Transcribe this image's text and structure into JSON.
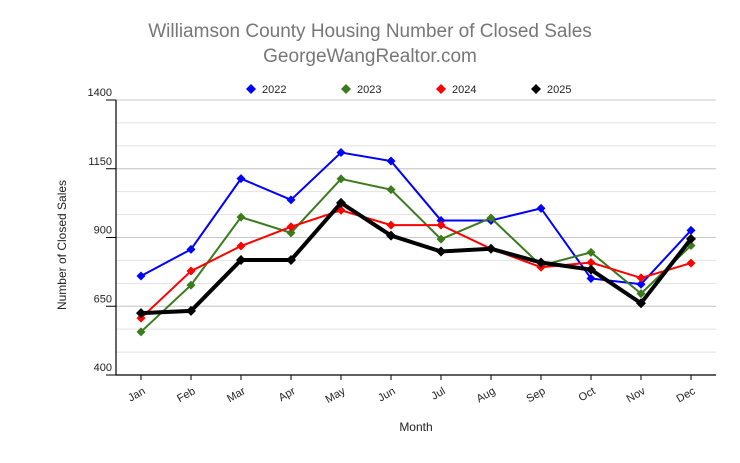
{
  "chart_data": {
    "type": "line",
    "title": "Williamson County Housing Number of Closed Sales",
    "subtitle": "GeorgeWangRealtor.com",
    "xlabel": "Month",
    "ylabel": "Number of Closed Sales",
    "categories": [
      "Jan",
      "Feb",
      "Mar",
      "Apr",
      "May",
      "Jun",
      "Jul",
      "Aug",
      "Sep",
      "Oct",
      "Nov",
      "Dec"
    ],
    "ylim": [
      400,
      1400
    ],
    "yticks": [
      400,
      650,
      900,
      1150,
      1400
    ],
    "grid": true,
    "legend_placement": "top-center",
    "series": [
      {
        "name": "2022",
        "color": "#0000ff",
        "values": [
          760,
          857,
          1114,
          1037,
          1209,
          1178,
          962,
          962,
          1006,
          751,
          730,
          926
        ]
      },
      {
        "name": "2023",
        "color": "#3c7a1e",
        "values": [
          557,
          727,
          974,
          917,
          1113,
          1074,
          894,
          971,
          798,
          846,
          696,
          871
        ]
      },
      {
        "name": "2024",
        "color": "#ff0000",
        "values": [
          607,
          778,
          869,
          939,
          999,
          945,
          945,
          859,
          792,
          809,
          753,
          807
        ]
      },
      {
        "name": "2025",
        "color": "#000000",
        "values": [
          625,
          633,
          818,
          818,
          1026,
          907,
          849,
          859,
          809,
          783,
          661,
          895
        ]
      }
    ]
  }
}
